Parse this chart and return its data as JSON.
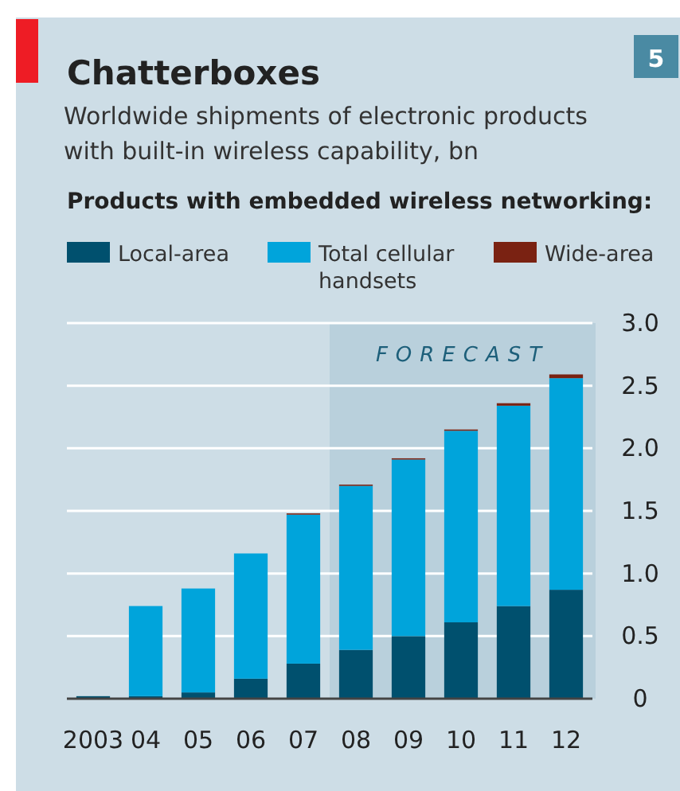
{
  "chart_data": {
    "type": "bar",
    "title": "Chatterboxes",
    "subtitle": "Worldwide shipments of electronic products with built-in wireless capability, bn",
    "legend_title": "Products with embedded wireless networking:",
    "categories": [
      "2003",
      "04",
      "05",
      "06",
      "07",
      "08",
      "09",
      "10",
      "11",
      "12"
    ],
    "stacked": true,
    "series": [
      {
        "name": "Local-area",
        "color": "#00506e",
        "values": [
          0.02,
          0.02,
          0.05,
          0.16,
          0.28,
          0.39,
          0.5,
          0.61,
          0.74,
          0.87
        ]
      },
      {
        "name": "Total cellular handsets",
        "color": "#00a4db",
        "values": [
          0,
          0.72,
          0.83,
          1.0,
          1.19,
          1.31,
          1.41,
          1.53,
          1.6,
          1.69
        ]
      },
      {
        "name": "Wide-area",
        "color": "#7a2212",
        "values": [
          0,
          0,
          0,
          0,
          0.01,
          0.01,
          0.01,
          0.01,
          0.02,
          0.03
        ]
      }
    ],
    "ylim": [
      0,
      3
    ],
    "yticks": [
      0,
      0.5,
      {
        "value": 1,
        "label": "1.0"
      },
      1.5,
      {
        "value": 2,
        "label": "2.0"
      },
      2.5,
      {
        "value": 3,
        "label": "3.0"
      }
    ],
    "grid": "y",
    "legend": "top",
    "bands": [
      {
        "axis": "x",
        "from": "08",
        "to": "12",
        "label": "FORECAST",
        "color": "#b9d0dc"
      }
    ],
    "annotations": [
      "5"
    ]
  }
}
